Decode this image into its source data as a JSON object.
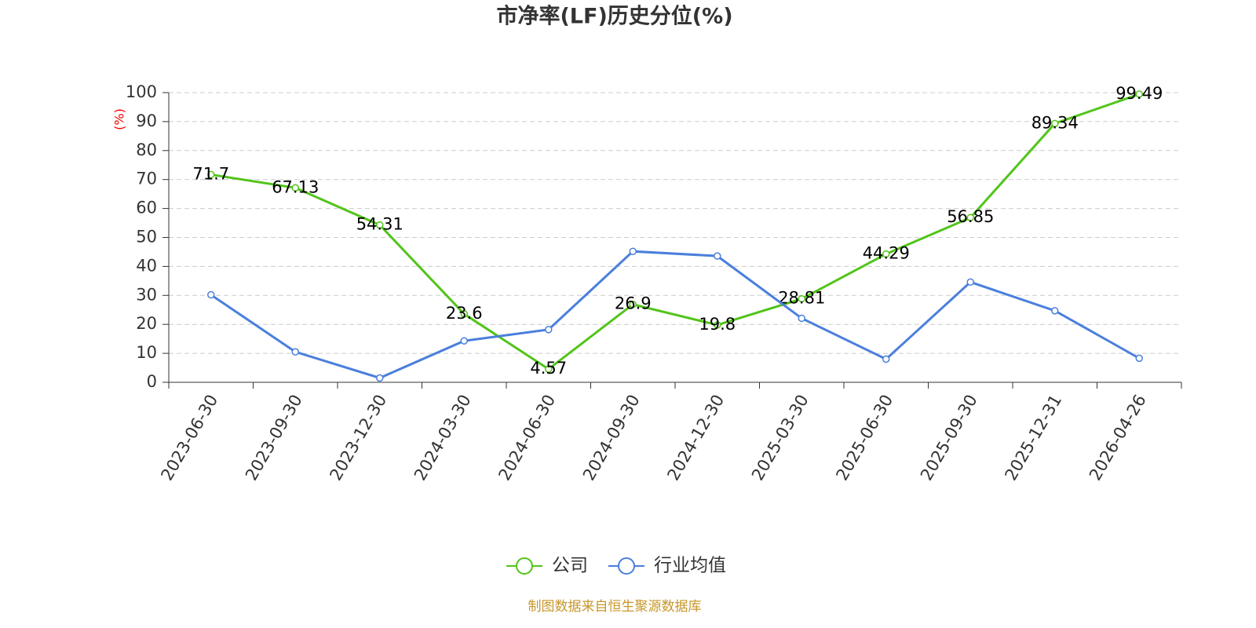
{
  "chart_data": {
    "type": "line",
    "title": "市净率(LF)历史分位(%)",
    "y_label": "(%)",
    "source": "制图数据来自恒生聚源数据库",
    "categories": [
      "2023-06-30",
      "2023-09-30",
      "2023-12-30",
      "2024-03-30",
      "2024-06-30",
      "2024-09-30",
      "2024-12-30",
      "2025-03-30",
      "2025-06-30",
      "2025-09-30",
      "2025-12-31",
      "2026-04-26"
    ],
    "series": [
      {
        "name": "公司",
        "color": "#52c41a",
        "data_labels": true,
        "values": [
          71.7,
          67.13,
          54.31,
          23.6,
          4.57,
          26.9,
          19.8,
          28.81,
          44.29,
          56.85,
          89.34,
          99.49
        ]
      },
      {
        "name": "行业均值",
        "color": "#4a7fdc",
        "data_labels": false,
        "values": [
          30.2,
          10.5,
          1.5,
          14.3,
          18.2,
          45.2,
          43.6,
          22.1,
          8.0,
          34.6,
          24.7,
          8.3
        ]
      }
    ],
    "ylim": [
      0,
      100
    ],
    "yticks": [
      0,
      10,
      20,
      30,
      40,
      50,
      60,
      70,
      80,
      90,
      100
    ],
    "grid": true,
    "legend": "bottom"
  }
}
